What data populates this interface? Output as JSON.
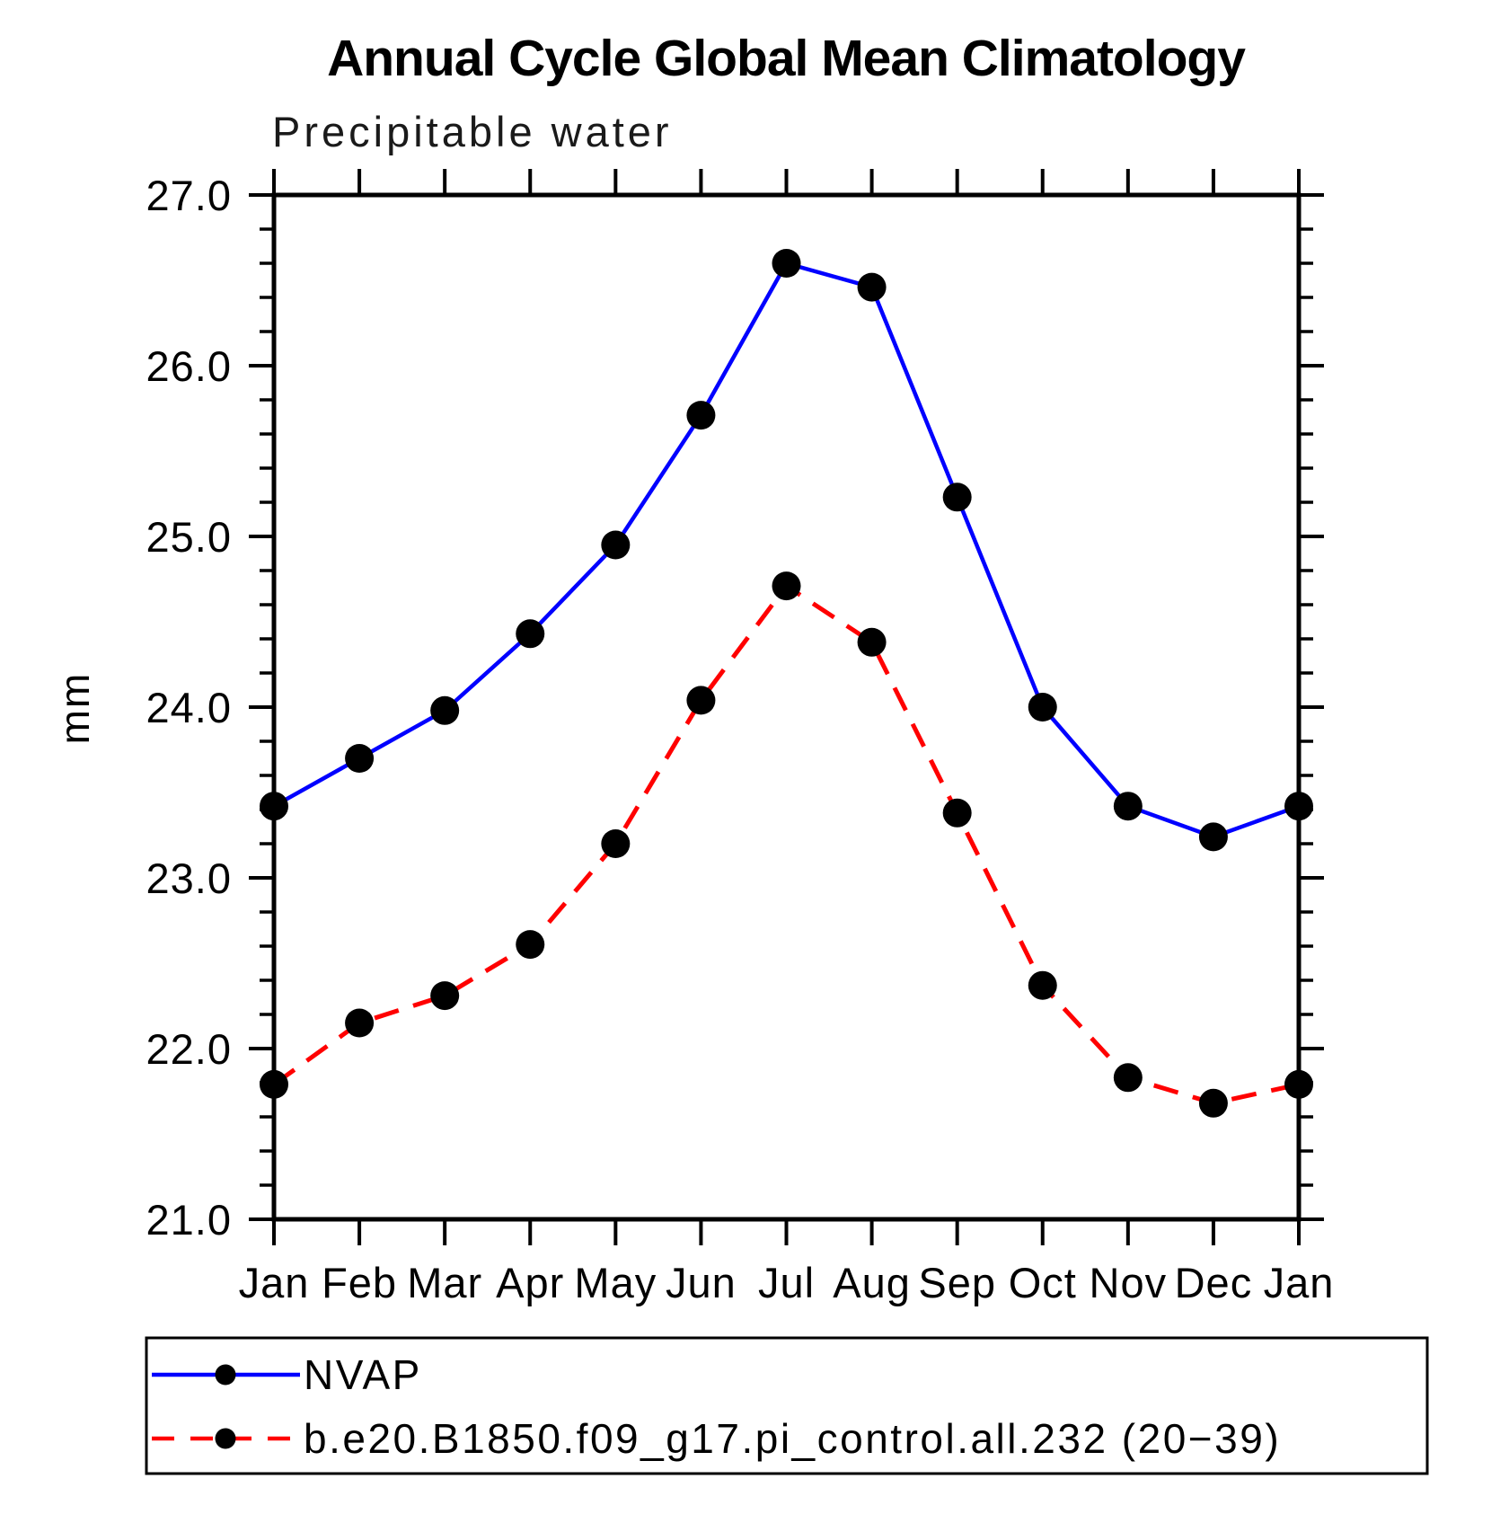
{
  "chart_data": {
    "type": "line",
    "title": "Annual Cycle Global Mean Climatology",
    "subtitle": "Precipitable water",
    "ylabel": "mm",
    "xlabel": "",
    "categories": [
      "Jan",
      "Feb",
      "Mar",
      "Apr",
      "May",
      "Jun",
      "Jul",
      "Aug",
      "Sep",
      "Oct",
      "Nov",
      "Dec",
      "Jan"
    ],
    "ylim": [
      21.0,
      27.0
    ],
    "y_major_tick_step": 1.0,
    "y_minor_tick_step": 0.2,
    "y_tick_decimals": 1,
    "grid": false,
    "legend_position": "bottom",
    "axis_color": "#000000",
    "marker_color": "#000000",
    "series": [
      {
        "name": "NVAP",
        "color": "#0000ff",
        "line_style": "solid",
        "marker": "filled-circle",
        "values": [
          23.42,
          23.7,
          23.98,
          24.43,
          24.95,
          25.71,
          26.6,
          26.46,
          25.23,
          24.0,
          23.42,
          23.24,
          23.42
        ]
      },
      {
        "name": "b.e20.B1850.f09_g17.pi_control.all.232 (20−39)",
        "color": "#ff0000",
        "line_style": "dashed",
        "marker": "filled-circle",
        "values": [
          21.79,
          22.15,
          22.31,
          22.61,
          23.2,
          24.04,
          24.71,
          24.38,
          23.38,
          22.37,
          21.83,
          21.68,
          21.79
        ]
      }
    ]
  }
}
